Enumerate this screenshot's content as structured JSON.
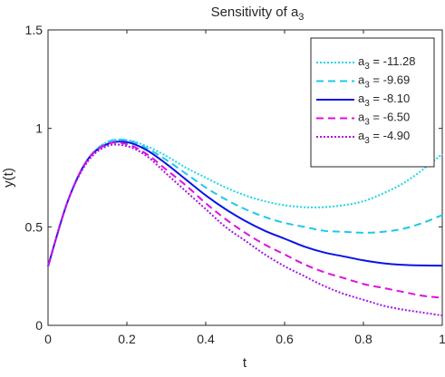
{
  "chart_data": {
    "type": "line",
    "title": "Sensitivity of a",
    "title_subscript": "3",
    "xlabel": "t",
    "ylabel": "y(t)",
    "xlim": [
      0,
      1
    ],
    "ylim": [
      0,
      1.5
    ],
    "x_ticks": [
      0,
      0.2,
      0.4,
      0.6,
      0.8,
      1
    ],
    "y_ticks": [
      0,
      0.5,
      1,
      1.5
    ],
    "x_tick_labels": [
      "0",
      "0.2",
      "0.4",
      "0.6",
      "0.8",
      "1"
    ],
    "y_tick_labels": [
      "0",
      "0.5",
      "1",
      "1.5"
    ],
    "grid": false,
    "legend_position": "top-right",
    "x": [
      0,
      0.05,
      0.1,
      0.15,
      0.2,
      0.25,
      0.3,
      0.35,
      0.4,
      0.45,
      0.5,
      0.55,
      0.6,
      0.65,
      0.7,
      0.75,
      0.8,
      0.85,
      0.9,
      0.95,
      1.0
    ],
    "series": [
      {
        "name_base": "a",
        "name_sub": "3",
        "name_value": " = -11.28",
        "color": "#1ed6e6",
        "dash": "dotted",
        "values": [
          0.3,
          0.63,
          0.84,
          0.93,
          0.94,
          0.91,
          0.86,
          0.8,
          0.75,
          0.7,
          0.66,
          0.63,
          0.61,
          0.6,
          0.6,
          0.61,
          0.63,
          0.67,
          0.72,
          0.79,
          0.87
        ]
      },
      {
        "name_base": "a",
        "name_sub": "3",
        "name_value": " = -9.69",
        "color": "#1ec8ee",
        "dash": "dashed",
        "values": [
          0.3,
          0.63,
          0.84,
          0.93,
          0.94,
          0.9,
          0.84,
          0.77,
          0.7,
          0.64,
          0.59,
          0.55,
          0.52,
          0.5,
          0.48,
          0.475,
          0.47,
          0.475,
          0.49,
          0.52,
          0.56
        ]
      },
      {
        "name_base": "a",
        "name_sub": "3",
        "name_value": " = -8.10",
        "color": "#0a14e6",
        "dash": "solid",
        "values": [
          0.3,
          0.63,
          0.84,
          0.92,
          0.93,
          0.89,
          0.82,
          0.74,
          0.66,
          0.59,
          0.53,
          0.48,
          0.44,
          0.4,
          0.37,
          0.35,
          0.33,
          0.315,
          0.307,
          0.304,
          0.303
        ]
      },
      {
        "name_base": "a",
        "name_sub": "3",
        "name_value": " = -6.50",
        "color": "#dd10dd",
        "dash": "dashed",
        "values": [
          0.3,
          0.63,
          0.84,
          0.92,
          0.92,
          0.87,
          0.79,
          0.71,
          0.62,
          0.54,
          0.47,
          0.41,
          0.36,
          0.31,
          0.27,
          0.24,
          0.21,
          0.19,
          0.17,
          0.15,
          0.14
        ]
      },
      {
        "name_base": "a",
        "name_sub": "3",
        "name_value": " = -4.90",
        "color": "#a414e6",
        "dash": "dotted",
        "values": [
          0.3,
          0.63,
          0.83,
          0.91,
          0.91,
          0.86,
          0.77,
          0.68,
          0.59,
          0.5,
          0.43,
          0.36,
          0.3,
          0.25,
          0.2,
          0.16,
          0.13,
          0.1,
          0.08,
          0.065,
          0.05
        ]
      }
    ]
  }
}
